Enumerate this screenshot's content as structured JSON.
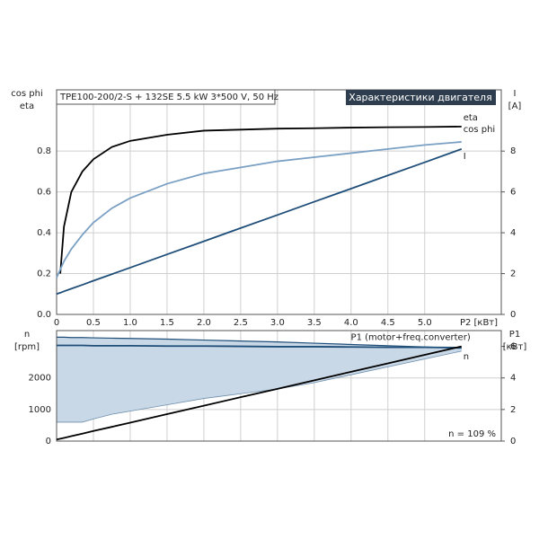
{
  "chart_data": [
    {
      "type": "line",
      "title": "TPE100-200/2-S + 132SE   5.5 kW   3*500 V, 50 Hz",
      "subtitle": "Характеристики двигателя",
      "ylabel": [
        "cos phi",
        "eta"
      ],
      "y2label": [
        "I",
        "[A]"
      ],
      "xlabel": "P2 [кВт]",
      "x": [
        0,
        0.05,
        0.1,
        0.2,
        0.35,
        0.5,
        0.75,
        1,
        1.5,
        2,
        2.5,
        3,
        3.5,
        4,
        4.5,
        5,
        5.5
      ],
      "xlim": [
        0,
        6.04
      ],
      "xticks": [
        0,
        {
          "value": 0.5,
          "label": "0.5"
        },
        {
          "value": 1,
          "label": "1.0"
        },
        1.5,
        {
          "value": 2,
          "label": "2.0"
        },
        2.5,
        {
          "value": 3,
          "label": "3.0"
        },
        3.5,
        {
          "value": 4,
          "label": "4.0"
        },
        4.5,
        {
          "value": 5,
          "label": "5.0"
        }
      ],
      "ylim": [
        0,
        1.1
      ],
      "yticks": [
        {
          "value": 0,
          "label": "0.0"
        },
        0.2,
        0.4,
        0.6,
        0.8
      ],
      "y2lim": [
        0,
        11
      ],
      "y2ticks": [
        0,
        2,
        4,
        6,
        8
      ],
      "grid": true,
      "series": [
        {
          "name": "eta",
          "color": "#000000",
          "values": [
            null,
            0.2,
            0.43,
            0.6,
            0.7,
            0.76,
            0.82,
            0.85,
            0.88,
            0.9,
            0.905,
            0.91,
            0.912,
            0.915,
            0.917,
            0.918,
            0.92
          ]
        },
        {
          "name": "cos phi",
          "color": "#7aa0c4",
          "values": [
            0.18,
            0.22,
            0.26,
            0.32,
            0.39,
            0.45,
            0.52,
            0.57,
            0.64,
            0.69,
            0.72,
            0.75,
            0.77,
            0.79,
            0.81,
            0.83,
            0.845
          ]
        },
        {
          "name": "I",
          "color": "#1f4e79",
          "axis": "y2",
          "values": [
            1.0,
            1.06,
            1.13,
            1.26,
            1.45,
            1.65,
            1.97,
            2.29,
            2.94,
            3.58,
            4.23,
            4.87,
            5.52,
            6.16,
            6.81,
            7.45,
            8.1
          ]
        }
      ]
    },
    {
      "type": "line",
      "ylabel": [
        "n",
        "[rpm]"
      ],
      "y2label": [
        "P1",
        "[кВт]"
      ],
      "annotation": "n = 109 %",
      "x": [
        0,
        0.05,
        0.1,
        0.2,
        0.35,
        0.5,
        0.75,
        1,
        1.5,
        2,
        2.5,
        3,
        3.5,
        4,
        4.5,
        5,
        5.5
      ],
      "xlim": [
        0,
        6.04
      ],
      "xticks": [
        0,
        0.5,
        1,
        1.5,
        2,
        2.5,
        3,
        3.5,
        4,
        4.5,
        5
      ],
      "ylim": [
        0,
        3500
      ],
      "yticks": [
        0,
        1000,
        2000
      ],
      "y2lim": [
        0,
        7
      ],
      "y2ticks": [
        0,
        2,
        4,
        6
      ],
      "grid": true,
      "band": {
        "color": "#c9d8e6",
        "upper": [
          3290,
          3290,
          3290,
          3280,
          3280,
          3270,
          3260,
          3250,
          3230,
          3200,
          3170,
          3140,
          3100,
          3060,
          3020,
          2980,
          2940
        ],
        "lower": [
          600,
          600,
          600,
          600,
          600,
          700,
          850,
          950,
          1150,
          1350,
          1500,
          1650,
          1850,
          2100,
          2350,
          2600,
          2850
        ]
      },
      "series": [
        {
          "name": "n",
          "color": "#1f4e79",
          "values": [
            3030,
            3030,
            3030,
            3030,
            3030,
            3020,
            3020,
            3020,
            3010,
            3010,
            3000,
            2990,
            2990,
            2980,
            2970,
            2970,
            2960
          ]
        },
        {
          "name": "P1 (motor+freq.converter)",
          "color": "#000000",
          "axis": "y2",
          "values": [
            0.1,
            0.15,
            0.2,
            0.31,
            0.47,
            0.64,
            0.9,
            1.17,
            1.71,
            2.24,
            2.78,
            3.31,
            3.85,
            4.39,
            4.92,
            5.46,
            6.0
          ]
        }
      ]
    }
  ]
}
